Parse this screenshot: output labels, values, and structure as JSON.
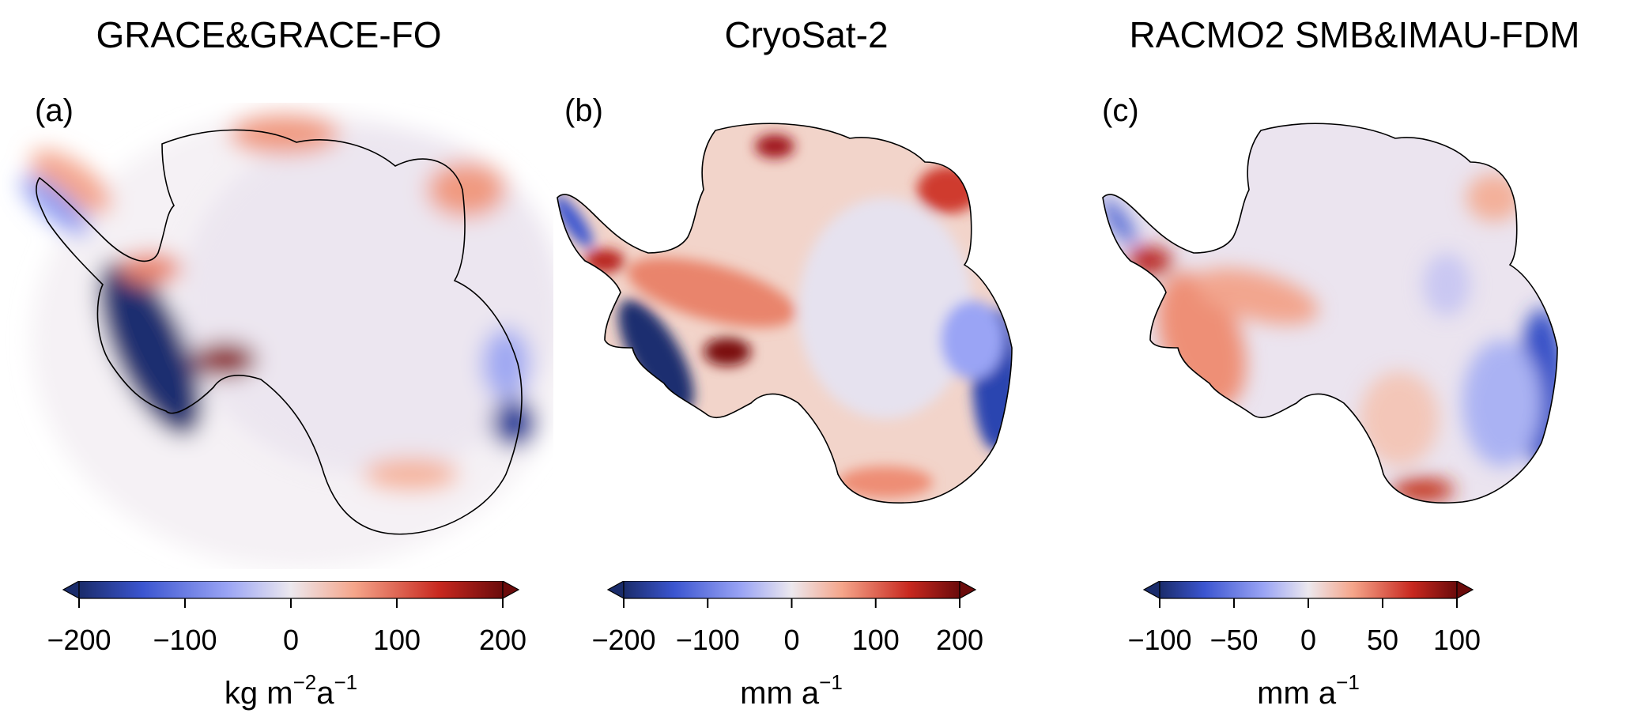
{
  "chart_data": [
    {
      "type": "heatmap",
      "panel_letter": "(a)",
      "title": "GRACE&GRACE-FO",
      "colormap": "coolwarm (blue-white-red)",
      "colorbar": {
        "min": -200,
        "max": 200,
        "extend": "both",
        "ticks": [
          -200,
          -100,
          0,
          100,
          200
        ],
        "tick_labels": [
          "−200",
          "−100",
          "0",
          "100",
          "200"
        ],
        "unit": {
          "base": "kg m",
          "sup1": "−2",
          "mid": "a",
          "sup2": "−1"
        }
      },
      "description": "Smoothed mass change over Antarctica; strong negative (dark blue) along Amundsen Sea coast of West Antarctica and Totten region of East Antarctica; positive (dark red) patch near Kamb Ice Stream; ringing pattern of weak positive/negative elsewhere."
    },
    {
      "type": "heatmap",
      "panel_letter": "(b)",
      "title": "CryoSat-2",
      "colormap": "coolwarm (blue-white-red)",
      "colorbar": {
        "min": -200,
        "max": 200,
        "extend": "both",
        "ticks": [
          -200,
          -100,
          0,
          100,
          200
        ],
        "tick_labels": [
          "−200",
          "−100",
          "0",
          "100",
          "200"
        ],
        "unit": {
          "base": "mm a",
          "sup1": "−1"
        }
      },
      "description": "Gridded elevation change; strong thinning (dark blue) in Amundsen Sea sector and Wilkes Land coast; thickening (dark red) near Kamb Ice Stream and Dronning Maud Land coast; mostly light red interior."
    },
    {
      "type": "heatmap",
      "panel_letter": "(c)",
      "title": "RACMO2 SMB&IMAU-FDM",
      "colormap": "coolwarm (blue-white-red)",
      "colorbar": {
        "min": -100,
        "max": 100,
        "extend": "both",
        "ticks": [
          -100,
          -50,
          0,
          50,
          100
        ],
        "tick_labels": [
          "−100",
          "−50",
          "0",
          "50",
          "100"
        ],
        "unit": {
          "base": "mm a",
          "sup1": "−1"
        }
      },
      "description": "Modelled surface-driven elevation change; positive (red) across West Antarctica and Antarctic Peninsula, dark red near Victoria Land coast; negative (blue) along Wilkes Land coast; near zero interior."
    }
  ],
  "colors": {
    "neg_extreme": "#1a2c6b",
    "neg_strong": "#3b55d0",
    "neg_light": "#9aa4f5",
    "neutral": "#e9e4ee",
    "pos_light": "#f5a58a",
    "pos_strong": "#d0382f",
    "pos_extreme": "#6b0b0b",
    "outline": "#000000"
  }
}
